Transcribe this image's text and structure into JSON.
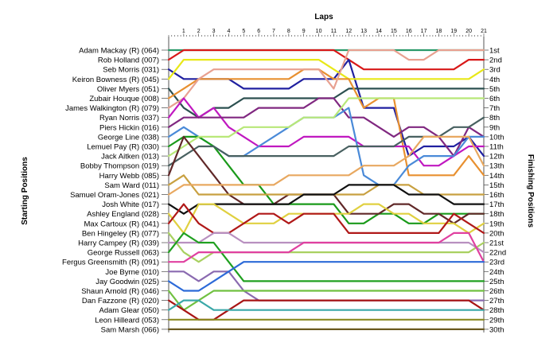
{
  "chart_data": {
    "type": "line",
    "title": "",
    "xlabel": "Laps",
    "ylabel_left": "Starting Positions",
    "ylabel_right": "Finishing Positions",
    "x": [
      0,
      1,
      2,
      3,
      4,
      5,
      6,
      7,
      8,
      9,
      10,
      11,
      12,
      13,
      14,
      15,
      16,
      17,
      18,
      19,
      20,
      21
    ],
    "x_ticks": [
      "1",
      "2",
      "3",
      "4",
      "5",
      "6",
      "7",
      "8",
      "9",
      "10",
      "11",
      "12",
      "13",
      "14",
      "15",
      "16",
      "17",
      "18",
      "19",
      "20",
      "21"
    ],
    "ylim": [
      1,
      30
    ],
    "y_inverted": true,
    "drivers": [
      "Adam Mackay  (R) (064)",
      "Rob Holland (007)",
      "Seb Morris (031)",
      "Keiron Bowness  (R) (045)",
      "Oliver Myers (051)",
      "Zubair Houque (008)",
      "James Walkington (R) (079)",
      "Ryan Norris (037)",
      "Piers Hickin (016)",
      "George Line (038)",
      "Lemuel Pay (R) (030)",
      "Jack Aitken (013)",
      "Bobby Thompson (019)",
      "Harry Webb (085)",
      "Sam Ward (011)",
      "Samuel Oram-Jones (021)",
      "Josh White (017)",
      "Ashley England (028)",
      "Max Cartoux  (R) (041)",
      "Ben Hingeley (R) (077)",
      "Harry Campey (R) (039)",
      "George Russell (063)",
      "Fergus Greensmith (R) (091)",
      "Joe Byrne (010)",
      "Jay Goodwin (025)",
      "Shaun Arnold (R) (046)",
      "Dan Fazzone (R) (020)",
      "Adam Glear (050)",
      "Leon Hilleard (053)",
      "Sam Marsh (066)"
    ],
    "finishing_positions": [
      "1st",
      "2nd",
      "3rd",
      "4th",
      "5th",
      "6th",
      "7th",
      "8th",
      "9th",
      "10th",
      "11th",
      "12th",
      "13th",
      "14th",
      "15th",
      "16th",
      "17th",
      "18th",
      "19th",
      "20th",
      "21st",
      "22nd",
      "23rd",
      "24th",
      "25th",
      "26th",
      "27th",
      "28th",
      "29th",
      "30th"
    ],
    "series": [
      {
        "color": "#2a9a6a",
        "values": [
          1,
          1,
          1,
          1,
          1,
          1,
          1,
          1,
          1,
          1,
          1,
          1,
          1,
          1,
          1,
          1,
          1,
          1,
          1,
          1,
          1,
          1
        ]
      },
      {
        "color": "#d81818",
        "values": [
          2,
          1,
          1,
          1,
          1,
          1,
          1,
          1,
          1,
          1,
          1,
          1,
          2,
          3,
          3,
          3,
          3,
          3,
          3,
          3,
          2,
          2
        ]
      },
      {
        "color": "#2020a0",
        "values": [
          3,
          4,
          4,
          4,
          4,
          5,
          5,
          5,
          5,
          4,
          4,
          4,
          2,
          7,
          7,
          7,
          12,
          11,
          11,
          11,
          10,
          12
        ]
      },
      {
        "color": "#e8e818",
        "values": [
          4,
          2,
          2,
          2,
          2,
          2,
          2,
          2,
          2,
          2,
          2,
          3,
          4,
          4,
          4,
          4,
          4,
          4,
          4,
          4,
          4,
          3
        ]
      },
      {
        "color": "#2c5050",
        "values": [
          5,
          7,
          8,
          7,
          7,
          6,
          6,
          6,
          6,
          6,
          6,
          6,
          5,
          5,
          5,
          5,
          5,
          5,
          5,
          5,
          5,
          5
        ]
      },
      {
        "color": "#e89030",
        "values": [
          6,
          5,
          4,
          4,
          4,
          4,
          4,
          4,
          4,
          3,
          3,
          4,
          4,
          7,
          6,
          6,
          14,
          14,
          14,
          14,
          12,
          14
        ]
      },
      {
        "color": "#e8a090",
        "values": [
          7,
          6,
          4,
          3,
          3,
          3,
          3,
          3,
          3,
          3,
          3,
          5,
          1,
          1,
          1,
          1,
          2,
          2,
          1,
          1,
          1,
          1
        ]
      },
      {
        "color": "#c018c0",
        "values": [
          8,
          6,
          8,
          7,
          9,
          10,
          11,
          11,
          11,
          10,
          10,
          10,
          10,
          11,
          11,
          11,
          11,
          13,
          13,
          12,
          11,
          11
        ]
      },
      {
        "color": "#802880",
        "values": [
          9,
          8,
          8,
          8,
          8,
          8,
          7,
          7,
          7,
          7,
          6,
          6,
          8,
          8,
          9,
          10,
          9,
          9,
          10,
          12,
          9,
          10
        ]
      },
      {
        "color": "#4a8ad8",
        "values": [
          10,
          9,
          10,
          11,
          12,
          12,
          11,
          10,
          9,
          8,
          8,
          8,
          7,
          14,
          15,
          15,
          13,
          12,
          12,
          12,
          10,
          10
        ]
      },
      {
        "color": "#1a9a1a",
        "values": [
          11,
          10,
          10,
          11,
          13,
          15,
          15,
          17,
          17,
          17,
          17,
          17,
          19,
          19,
          18,
          18,
          19,
          19,
          18,
          18,
          18,
          18
        ]
      },
      {
        "color": "#b8e878",
        "values": [
          12,
          11,
          10,
          10,
          10,
          9,
          9,
          9,
          9,
          8,
          8,
          8,
          6,
          6,
          6,
          6,
          6,
          6,
          6,
          6,
          6,
          6
        ]
      },
      {
        "color": "#486060",
        "values": [
          13,
          12,
          11,
          11,
          12,
          12,
          12,
          12,
          12,
          12,
          12,
          12,
          11,
          11,
          11,
          11,
          10,
          10,
          10,
          9,
          9,
          8
        ]
      },
      {
        "color": "#602828",
        "values": [
          14,
          10,
          12,
          14,
          16,
          17,
          17,
          17,
          16,
          16,
          16,
          16,
          18,
          18,
          18,
          17,
          17,
          18,
          18,
          19,
          18,
          18
        ]
      },
      {
        "color": "#c8a040",
        "values": [
          15,
          14,
          16,
          16,
          16,
          16,
          16,
          16,
          16,
          16,
          16,
          16,
          16,
          16,
          15,
          15,
          15,
          16,
          16,
          16,
          16,
          16
        ]
      },
      {
        "color": "#e8a860",
        "values": [
          16,
          15,
          15,
          15,
          15,
          15,
          15,
          15,
          14,
          14,
          14,
          14,
          14,
          13,
          13,
          13,
          12,
          10,
          10,
          10,
          10,
          13
        ]
      },
      {
        "color": "#101010",
        "values": [
          17,
          18,
          17,
          17,
          17,
          17,
          17,
          17,
          17,
          16,
          16,
          16,
          15,
          15,
          15,
          15,
          16,
          16,
          16,
          17,
          17,
          17
        ]
      },
      {
        "color": "#e0d040",
        "values": [
          18,
          20,
          17,
          17,
          18,
          19,
          19,
          19,
          18,
          18,
          18,
          18,
          18,
          17,
          17,
          18,
          18,
          19,
          19,
          19,
          20,
          19
        ]
      },
      {
        "color": "#b01818",
        "values": [
          19,
          17,
          19,
          20,
          20,
          19,
          18,
          18,
          19,
          18,
          18,
          18,
          20,
          20,
          20,
          20,
          20,
          20,
          20,
          18,
          19,
          20
        ]
      },
      {
        "color": "#a8d060",
        "values": [
          20,
          22,
          23,
          22,
          22,
          22,
          22,
          22,
          22,
          22,
          22,
          22,
          22,
          22,
          22,
          22,
          22,
          22,
          22,
          22,
          22,
          21
        ]
      },
      {
        "color": "#b890c0",
        "values": [
          21,
          21,
          21,
          20,
          20,
          21,
          21,
          21,
          21,
          21,
          21,
          21,
          21,
          21,
          21,
          21,
          21,
          21,
          21,
          21,
          21,
          22
        ]
      },
      {
        "color": "#20a020",
        "values": [
          22,
          20,
          21,
          21,
          23,
          25,
          25,
          25,
          25,
          25,
          25,
          25,
          25,
          25,
          25,
          25,
          25,
          25,
          25,
          25,
          25,
          25
        ]
      },
      {
        "color": "#e040a0",
        "values": [
          23,
          23,
          22,
          22,
          22,
          22,
          22,
          22,
          22,
          21,
          21,
          21,
          21,
          21,
          21,
          21,
          21,
          21,
          21,
          20,
          20,
          23
        ]
      },
      {
        "color": "#8a6ab0",
        "values": [
          24,
          24,
          25,
          24,
          24,
          26,
          27,
          27,
          27,
          27,
          27,
          27,
          27,
          27,
          27,
          27,
          27,
          27,
          27,
          27,
          27,
          27
        ]
      },
      {
        "color": "#2c6ad8",
        "values": [
          25,
          26,
          26,
          25,
          24,
          23,
          23,
          23,
          23,
          23,
          23,
          23,
          23,
          23,
          23,
          23,
          23,
          23,
          23,
          23,
          23,
          23
        ]
      },
      {
        "color": "#70c040",
        "values": [
          26,
          28,
          27,
          26,
          26,
          26,
          26,
          26,
          26,
          26,
          26,
          26,
          26,
          26,
          26,
          26,
          26,
          26,
          26,
          26,
          26,
          26
        ]
      },
      {
        "color": "#a81414",
        "values": [
          27,
          28,
          29,
          29,
          28,
          27,
          27,
          27,
          27,
          27,
          27,
          27,
          27,
          27,
          27,
          27,
          27,
          27,
          27,
          27,
          27,
          28
        ]
      },
      {
        "color": "#3aa8a8",
        "values": [
          28,
          27,
          27,
          28,
          28,
          28,
          28,
          28,
          28,
          28,
          28,
          28,
          28,
          28,
          28,
          28,
          28,
          28,
          28,
          28,
          28,
          28
        ]
      },
      {
        "color": "#8a8a20",
        "values": [
          29,
          29,
          29,
          29,
          29,
          29,
          29,
          29,
          29,
          29,
          29,
          29,
          29,
          29,
          29,
          29,
          29,
          29,
          29,
          29,
          29,
          29
        ]
      },
      {
        "color": "#6a5a20",
        "values": [
          30,
          30,
          30,
          30,
          30,
          30,
          30,
          30,
          30,
          30,
          30,
          30,
          30,
          30,
          30,
          30,
          30,
          30,
          30,
          30,
          30,
          30
        ]
      }
    ]
  }
}
